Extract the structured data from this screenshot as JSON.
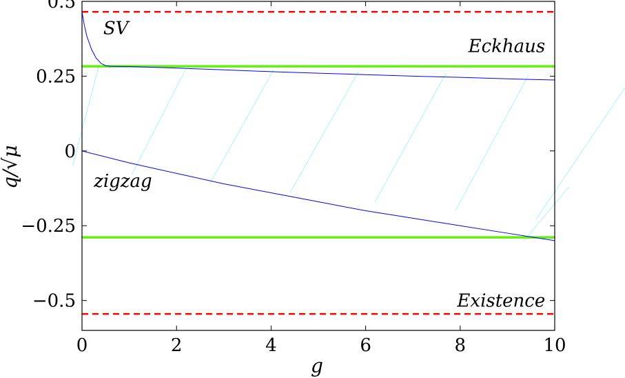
{
  "chart_data": {
    "type": "line",
    "title": "",
    "xlabel": "g",
    "ylabel": "q/√μ",
    "xlim": [
      0,
      10
    ],
    "ylim": [
      -0.6,
      0.5
    ],
    "x_ticks": [
      0,
      2,
      4,
      6,
      8,
      10
    ],
    "x_tick_labels": [
      "0",
      "2",
      "4",
      "6",
      "8",
      "10"
    ],
    "y_ticks": [
      0.5,
      0.25,
      0,
      -0.25,
      -0.5
    ],
    "y_tick_labels": [
      "0.5",
      "0.25",
      "0",
      "−0.25",
      "−0.5"
    ],
    "grid": false,
    "legend": "none",
    "annotations": [
      {
        "text": "SV",
        "x": 0.45,
        "y": 0.39
      },
      {
        "text": "Eckhaus",
        "x": 9.8,
        "y": 0.33,
        "anchor": "end"
      },
      {
        "text": "zigzag",
        "x": 0.25,
        "y": -0.12
      },
      {
        "text": "Existence",
        "x": 9.8,
        "y": -0.52,
        "anchor": "end"
      }
    ],
    "series": [
      {
        "style": "dashed",
        "color": "#ff0000",
        "x": [
          0,
          10
        ],
        "y": [
          0.465,
          0.465
        ]
      },
      {
        "style": "dashed",
        "color": "#ff0000",
        "x": [
          0,
          10
        ],
        "y": [
          -0.545,
          -0.545
        ]
      },
      {
        "style": "solid-thick",
        "color": "#66ee11",
        "x": [
          0,
          10
        ],
        "y": [
          0.283,
          0.283
        ]
      },
      {
        "style": "solid-thick",
        "color": "#66ee11",
        "x": [
          0,
          10
        ],
        "y": [
          -0.289,
          -0.289
        ]
      },
      {
        "style": "solid",
        "color": "#0000ff",
        "x": [
          0,
          0.05,
          0.1,
          0.2,
          0.3,
          0.4,
          0.5,
          0.6
        ],
        "y": [
          0.465,
          0.42,
          0.385,
          0.34,
          0.31,
          0.293,
          0.285,
          0.283
        ]
      },
      {
        "style": "solid",
        "color": "#0000ff",
        "x": [
          0.6,
          1,
          2,
          3,
          4,
          5,
          6,
          7,
          8,
          9,
          10
        ],
        "y": [
          0.283,
          0.282,
          0.277,
          0.271,
          0.265,
          0.26,
          0.255,
          0.25,
          0.246,
          0.241,
          0.237
        ]
      },
      {
        "style": "solid",
        "color": "#0000ff",
        "x": [
          0,
          1,
          2,
          3,
          4,
          5,
          6,
          7,
          8,
          9,
          10
        ],
        "y": [
          0,
          -0.04,
          -0.075,
          -0.11,
          -0.14,
          -0.17,
          -0.2,
          -0.225,
          -0.25,
          -0.275,
          -0.3
        ]
      }
    ],
    "hatch_region": {
      "color": "#aaf4f4",
      "x_start": 0,
      "x_end": 10,
      "between": "zigzag curve and upper Eckhaus boundary"
    }
  }
}
